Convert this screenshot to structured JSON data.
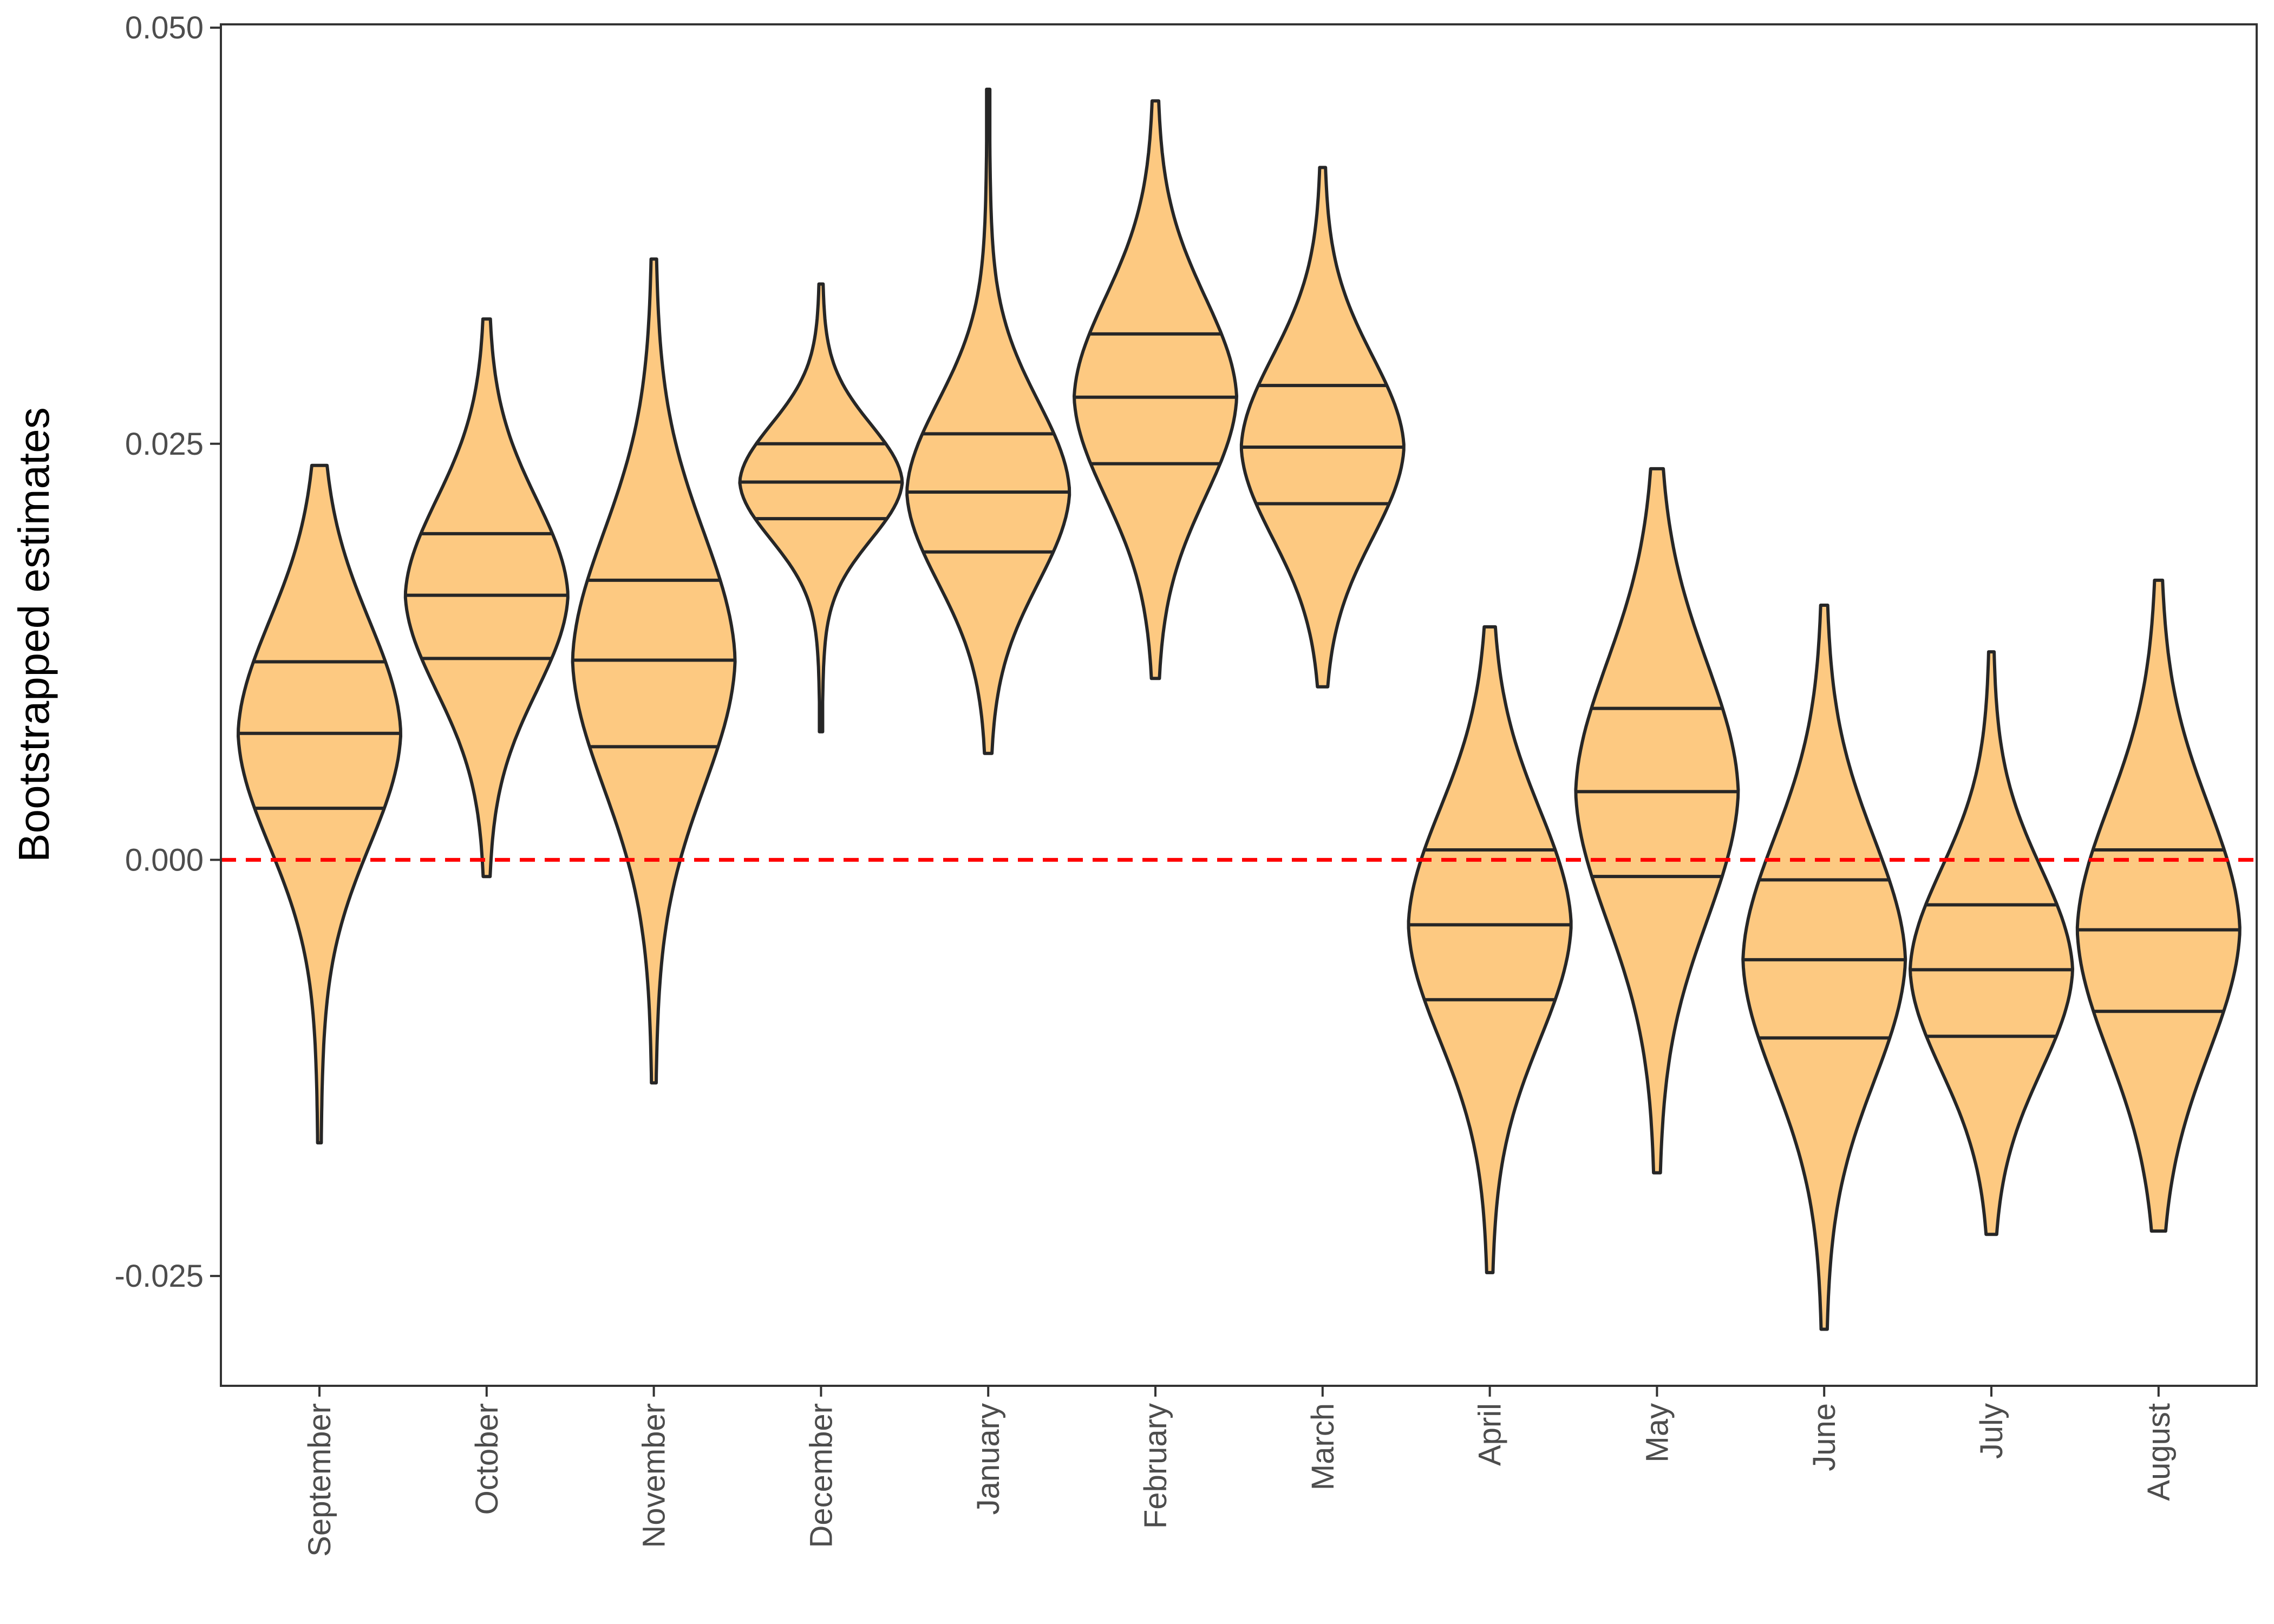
{
  "chart_data": {
    "type": "violin",
    "xlabel": "",
    "ylabel": "Bootstrapped estimates",
    "ylim": [
      -0.0316,
      0.0502
    ],
    "yticks": [
      -0.025,
      0.0,
      0.025,
      0.05
    ],
    "ytick_labels": [
      "-0.025",
      "0.000",
      "0.025",
      "0.050"
    ],
    "reference_line": {
      "y": 0.0,
      "style": "dashed",
      "color": "#ff0000"
    },
    "grid": false,
    "fill_color": "#fdc981",
    "line_color": "#262626",
    "categories": [
      "September",
      "October",
      "November",
      "December",
      "January",
      "February",
      "March",
      "April",
      "May",
      "June",
      "July",
      "August"
    ],
    "violins": [
      {
        "min": -0.017,
        "q1": 0.0031,
        "median": 0.0076,
        "q3": 0.0119,
        "max": 0.0237
      },
      {
        "min": -0.001,
        "q1": 0.0121,
        "median": 0.0159,
        "q3": 0.0196,
        "max": 0.0325
      },
      {
        "min": -0.0134,
        "q1": 0.0068,
        "median": 0.012,
        "q3": 0.0168,
        "max": 0.0361
      },
      {
        "min": 0.0077,
        "q1": 0.0205,
        "median": 0.0227,
        "q3": 0.025,
        "max": 0.0346
      },
      {
        "min": 0.0064,
        "q1": 0.0185,
        "median": 0.0221,
        "q3": 0.0256,
        "max": 0.0463
      },
      {
        "min": 0.0109,
        "q1": 0.0238,
        "median": 0.0278,
        "q3": 0.0316,
        "max": 0.0456
      },
      {
        "min": 0.0104,
        "q1": 0.0214,
        "median": 0.0248,
        "q3": 0.0285,
        "max": 0.0416
      },
      {
        "min": -0.0248,
        "q1": -0.0084,
        "median": -0.0039,
        "q3": 0.0006,
        "max": 0.014
      },
      {
        "min": -0.0188,
        "q1": -0.001,
        "median": 0.0041,
        "q3": 0.0091,
        "max": 0.0235
      },
      {
        "min": -0.0282,
        "q1": -0.0107,
        "median": -0.006,
        "q3": -0.0012,
        "max": 0.0153
      },
      {
        "min": -0.0225,
        "q1": -0.0106,
        "median": -0.0066,
        "q3": -0.0027,
        "max": 0.0125
      },
      {
        "min": -0.0223,
        "q1": -0.0091,
        "median": -0.0042,
        "q3": 0.0006,
        "max": 0.0168
      }
    ]
  }
}
